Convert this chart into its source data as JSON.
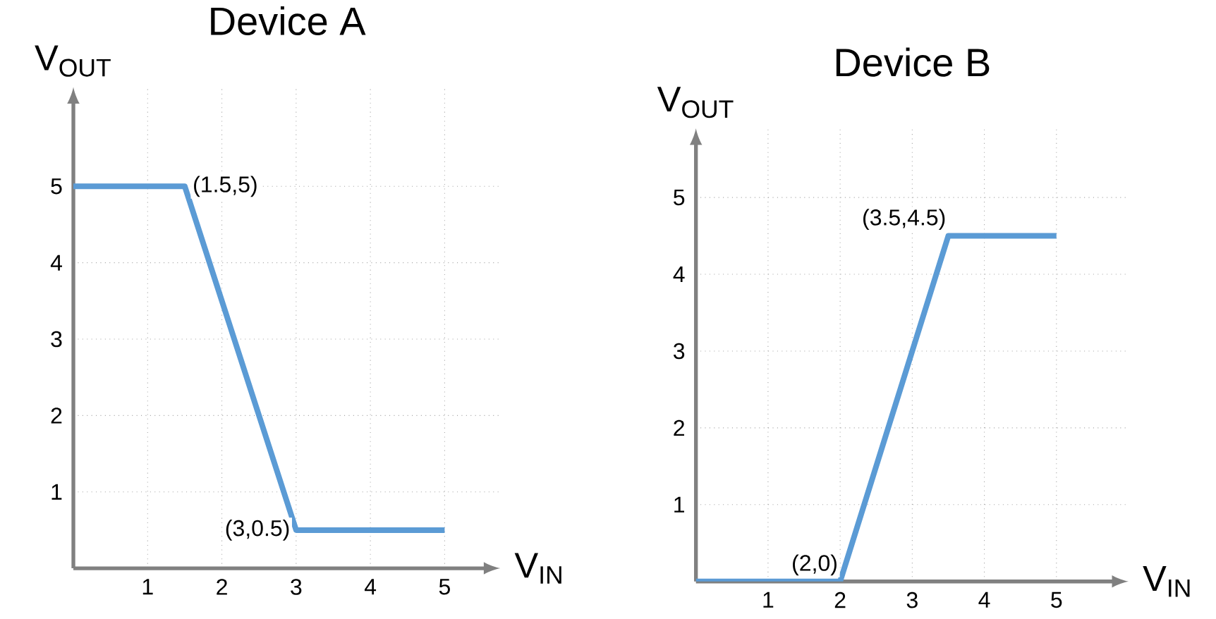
{
  "chart_data": [
    {
      "type": "line",
      "title": "Device A",
      "xlabel": "V$_{IN}$",
      "ylabel": "V$_{OUT}$",
      "x": [
        0,
        1.5,
        3,
        5
      ],
      "series": [
        {
          "color": "#5b9bd5",
          "values": [
            5,
            5,
            0.5,
            0.5
          ]
        }
      ],
      "xlim": [
        0,
        5.75
      ],
      "ylim": [
        0,
        6.3
      ],
      "xticks": [
        1,
        2,
        3,
        4,
        5
      ],
      "yticks": [
        1,
        2,
        3,
        4,
        5
      ],
      "grid": true,
      "marker": "none",
      "line_style": "solid",
      "annotations": [
        {
          "text": "(1.5,5)",
          "x": 1.5,
          "y": 5
        },
        {
          "text": "(3,0.5)",
          "x": 3,
          "y": 0.5
        }
      ]
    },
    {
      "type": "line",
      "title": "Device B",
      "xlabel": "V$_{IN}$",
      "ylabel": "V$_{OUT}$",
      "x": [
        0,
        2,
        3.5,
        5
      ],
      "series": [
        {
          "color": "#5b9bd5",
          "values": [
            0,
            0,
            4.5,
            4.5
          ]
        }
      ],
      "xlim": [
        0,
        6
      ],
      "ylim": [
        0,
        5.9
      ],
      "xticks": [
        1,
        2,
        3,
        4,
        5
      ],
      "yticks": [
        1,
        2,
        3,
        4,
        5
      ],
      "grid": true,
      "marker": "none",
      "line_style": "solid",
      "annotations": [
        {
          "text": "(3.5,4.5)",
          "x": 3.5,
          "y": 4.5
        },
        {
          "text": "(2,0)",
          "x": 2,
          "y": 0
        }
      ]
    }
  ]
}
